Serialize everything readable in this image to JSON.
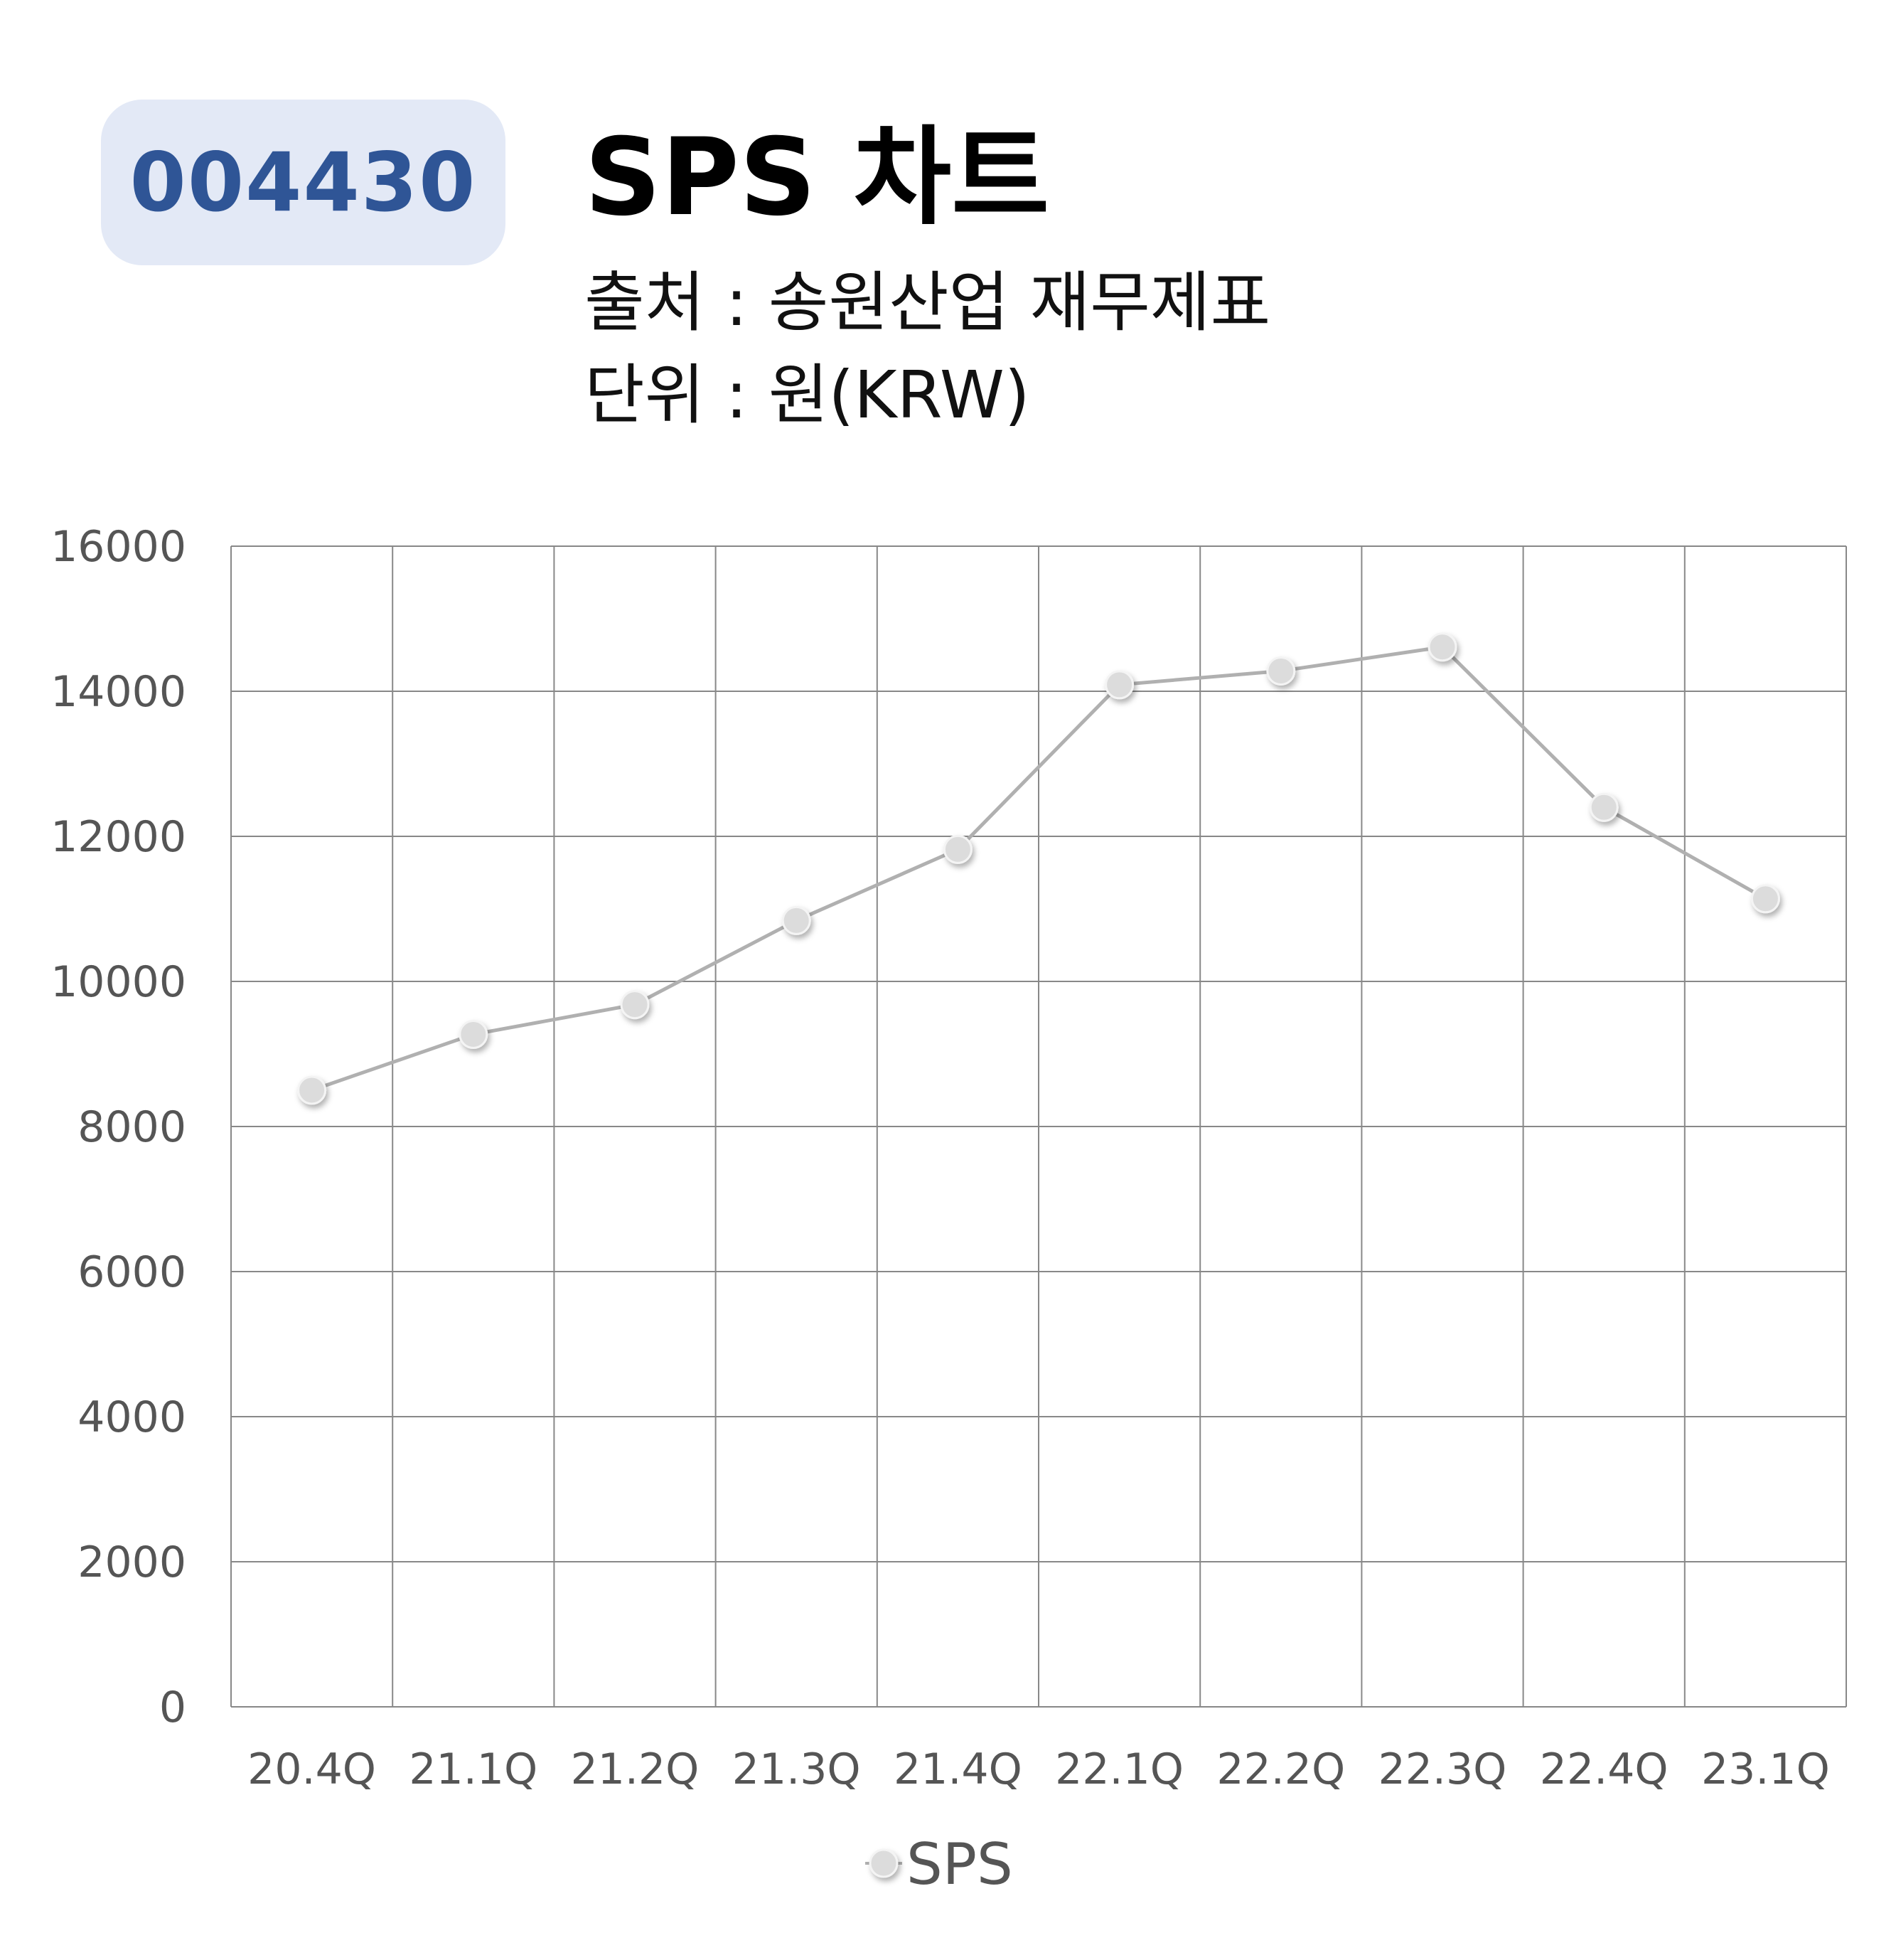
{
  "header": {
    "ticker": "004430",
    "title": "SPS 차트",
    "source": "출처 : 송원산업 재무제표",
    "unit": "단위 : 원(KRW)"
  },
  "chart_data": {
    "type": "line",
    "categories": [
      "20.4Q",
      "21.1Q",
      "21.2Q",
      "21.3Q",
      "21.4Q",
      "22.1Q",
      "22.2Q",
      "22.3Q",
      "22.4Q",
      "23.1Q"
    ],
    "series": [
      {
        "name": "SPS",
        "values": [
          8500,
          9270,
          9680,
          10840,
          11820,
          14090,
          14280,
          14610,
          12400,
          11140
        ]
      }
    ],
    "yticks": [
      "0",
      "2000",
      "4000",
      "6000",
      "8000",
      "10000",
      "12000",
      "14000",
      "16000"
    ],
    "ylim": [
      0,
      16000
    ],
    "grid": true,
    "legend": "bottom-center",
    "colors": {
      "line": "#b0b0b0",
      "marker": "#dcdcdc",
      "grid": "#888888"
    }
  }
}
